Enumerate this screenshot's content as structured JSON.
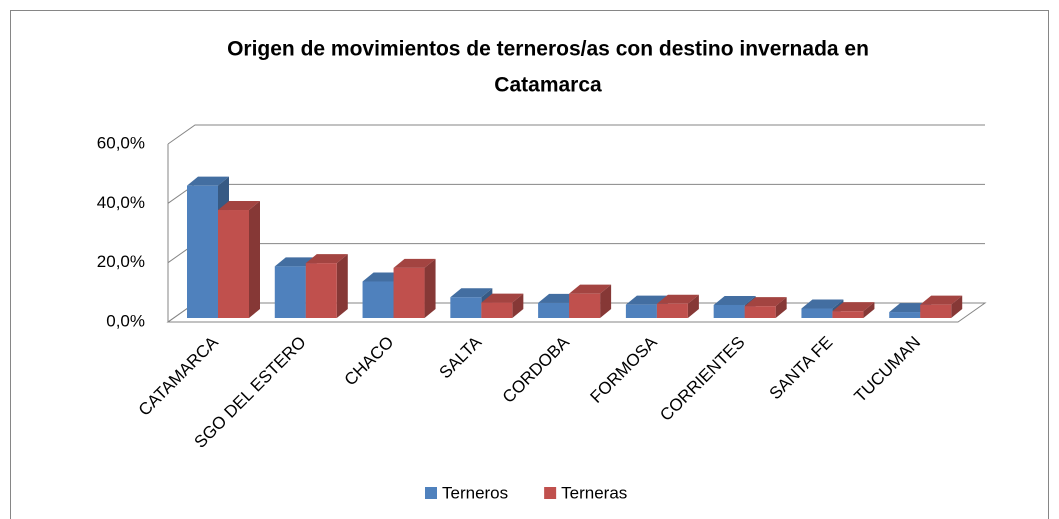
{
  "chart_data": {
    "type": "bar3d",
    "title": [
      "Origen de movimientos de terneros/as con destino invernada en",
      "Catamarca"
    ],
    "categories": [
      "CATAMARCA",
      "SGO DEL ESTERO",
      "CHACO",
      "SALTA",
      "CORDOBA",
      "FORMOSA",
      "CORRIENTES",
      "SANTA FE",
      "TUCUMAN"
    ],
    "series": [
      {
        "name": "Terneros",
        "color": "#4f81bd",
        "values": [
          44.6,
          17.4,
          12.3,
          7.0,
          5.1,
          4.5,
          4.4,
          3.2,
          2.0
        ]
      },
      {
        "name": "Terneras",
        "color": "#c0504d",
        "values": [
          36.4,
          18.5,
          16.9,
          5.2,
          8.2,
          4.8,
          4.0,
          2.3,
          4.5
        ]
      }
    ],
    "ylim": [
      0,
      60
    ],
    "yticks": [
      {
        "value": 0,
        "label": "0,0%"
      },
      {
        "value": 20,
        "label": "20,0%"
      },
      {
        "value": 40,
        "label": "40,0%"
      },
      {
        "value": 60,
        "label": "60,0%"
      }
    ],
    "grid": true,
    "legend": "bottom"
  }
}
